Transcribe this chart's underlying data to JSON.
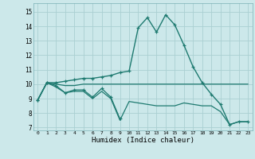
{
  "xlabel": "Humidex (Indice chaleur)",
  "bg_color": "#cce8ea",
  "grid_color": "#aacfd2",
  "line_color": "#1e7a70",
  "xlim": [
    -0.5,
    23.5
  ],
  "ylim": [
    6.8,
    15.6
  ],
  "xticks": [
    0,
    1,
    2,
    3,
    4,
    5,
    6,
    7,
    8,
    9,
    10,
    11,
    12,
    13,
    14,
    15,
    16,
    17,
    18,
    19,
    20,
    21,
    22,
    23
  ],
  "yticks": [
    7,
    8,
    9,
    10,
    11,
    12,
    13,
    14,
    15
  ],
  "series": [
    {
      "x": [
        0,
        1,
        2,
        3,
        4,
        5,
        6,
        7,
        8,
        9
      ],
      "y": [
        8.9,
        10.1,
        9.9,
        9.4,
        9.6,
        9.6,
        9.1,
        9.7,
        9.1,
        7.6
      ],
      "marker": true,
      "lw": 0.9
    },
    {
      "x": [
        0,
        1,
        2,
        3,
        4,
        5,
        6,
        7,
        8,
        9,
        10,
        11,
        12,
        13,
        14,
        15,
        16,
        17,
        18,
        19,
        20,
        21,
        22,
        23
      ],
      "y": [
        8.9,
        10.1,
        9.8,
        9.4,
        9.5,
        9.5,
        9.0,
        9.5,
        9.0,
        7.5,
        8.8,
        8.7,
        8.6,
        8.5,
        8.5,
        8.5,
        8.7,
        8.6,
        8.5,
        8.5,
        8.1,
        7.2,
        7.4,
        7.4
      ],
      "marker": false,
      "lw": 0.9
    },
    {
      "x": [
        0,
        1,
        2,
        3,
        4,
        5,
        6,
        7,
        8,
        9,
        10,
        11,
        12,
        13,
        14,
        15,
        16,
        17,
        18,
        19,
        20,
        21,
        22,
        23
      ],
      "y": [
        8.9,
        10.1,
        10.0,
        9.9,
        9.9,
        10.0,
        10.0,
        10.0,
        10.0,
        10.0,
        10.0,
        10.0,
        10.0,
        10.0,
        10.0,
        10.0,
        10.0,
        10.0,
        10.0,
        10.0,
        10.0,
        10.0,
        10.0,
        10.0
      ],
      "marker": false,
      "lw": 0.9
    },
    {
      "x": [
        0,
        1,
        2,
        3,
        4,
        5,
        6,
        7,
        8,
        9,
        10,
        11,
        12,
        13,
        14,
        15,
        16,
        17,
        18,
        19,
        20,
        21,
        22,
        23
      ],
      "y": [
        8.9,
        10.1,
        10.1,
        10.2,
        10.3,
        10.4,
        10.4,
        10.5,
        10.6,
        10.8,
        10.9,
        13.9,
        14.6,
        13.6,
        14.8,
        14.1,
        12.7,
        11.2,
        10.1,
        9.3,
        8.6,
        7.2,
        7.4,
        7.4
      ],
      "marker": true,
      "lw": 1.0
    }
  ]
}
